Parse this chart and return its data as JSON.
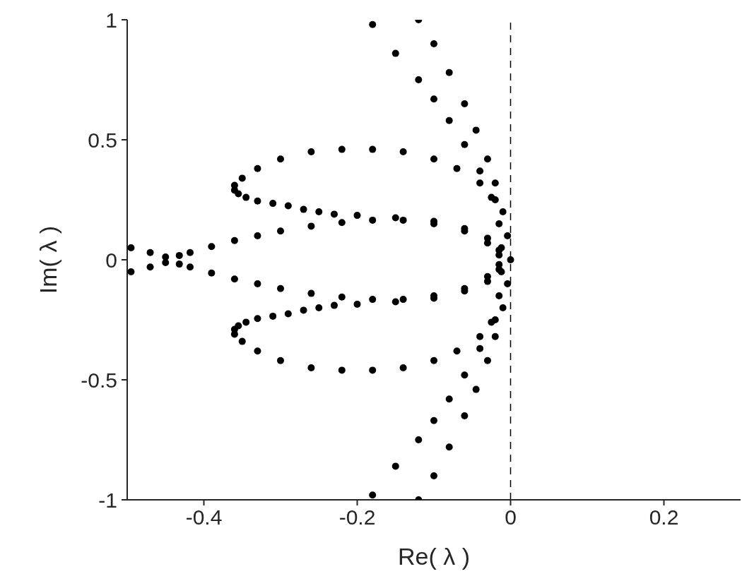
{
  "chart_data": {
    "type": "scatter",
    "xlabel": "Re( λ )",
    "ylabel": "Im( λ )",
    "xlim": [
      -0.5,
      0.3
    ],
    "ylim": [
      -1,
      1
    ],
    "xticks": [
      -0.4,
      -0.2,
      0,
      0.2
    ],
    "yticks": [
      -1,
      -0.5,
      0,
      0.5,
      1
    ],
    "grid": false,
    "legend": false,
    "marker": "circle",
    "ref_lines": [
      {
        "axis": "x",
        "value": 0,
        "line_style": "dashed",
        "color": "#000000"
      }
    ],
    "series": [
      {
        "color": "#000000",
        "x": [
          -0.12,
          -0.1,
          -0.08,
          -0.06,
          -0.045,
          -0.03,
          -0.02,
          -0.01,
          -0.004,
          0,
          -0.004,
          -0.01,
          -0.02,
          -0.03,
          -0.045,
          -0.06,
          -0.08,
          -0.1,
          -0.12,
          -0.18,
          -0.15,
          -0.12,
          -0.1,
          -0.08,
          -0.06,
          -0.04,
          -0.025,
          -0.015,
          -0.012,
          -0.012,
          -0.015,
          -0.025,
          -0.04,
          -0.06,
          -0.08,
          -0.1,
          -0.12,
          -0.15,
          -0.18,
          -0.02,
          -0.04,
          -0.07,
          -0.1,
          -0.14,
          -0.18,
          -0.22,
          -0.26,
          -0.3,
          -0.33,
          -0.35,
          -0.36,
          -0.36,
          -0.355,
          -0.345,
          -0.33,
          -0.31,
          -0.29,
          -0.27,
          -0.25,
          -0.23,
          -0.2,
          -0.15,
          -0.1,
          -0.06,
          -0.03,
          -0.015,
          -0.02,
          -0.04,
          -0.07,
          -0.1,
          -0.14,
          -0.18,
          -0.22,
          -0.26,
          -0.3,
          -0.33,
          -0.35,
          -0.36,
          -0.36,
          -0.355,
          -0.345,
          -0.33,
          -0.31,
          -0.29,
          -0.27,
          -0.25,
          -0.23,
          -0.2,
          -0.15,
          -0.1,
          -0.06,
          -0.03,
          -0.015,
          -0.495,
          -0.47,
          -0.45,
          -0.432,
          -0.418,
          -0.39,
          -0.36,
          -0.33,
          -0.3,
          -0.26,
          -0.22,
          -0.18,
          -0.14,
          -0.1,
          -0.06,
          -0.03,
          -0.015,
          -0.495,
          -0.47,
          -0.45,
          -0.432,
          -0.418,
          -0.39,
          -0.36,
          -0.33,
          -0.3,
          -0.26,
          -0.22,
          -0.18,
          -0.14,
          -0.1,
          -0.06,
          -0.03,
          -0.015
        ],
        "values": [
          1,
          0.9,
          0.78,
          0.65,
          0.54,
          0.42,
          0.32,
          0.2,
          0.1,
          0,
          -0.1,
          -0.2,
          -0.32,
          -0.42,
          -0.54,
          -0.65,
          -0.78,
          -0.9,
          -1,
          0.98,
          0.86,
          0.75,
          0.67,
          0.58,
          0.48,
          0.37,
          0.26,
          0.15,
          0.05,
          -0.05,
          -0.15,
          -0.26,
          -0.37,
          -0.48,
          -0.58,
          -0.67,
          -0.75,
          -0.86,
          -0.98,
          0.25,
          0.32,
          0.38,
          0.42,
          0.45,
          0.46,
          0.46,
          0.45,
          0.42,
          0.38,
          0.34,
          0.31,
          0.29,
          0.275,
          0.26,
          0.245,
          0.235,
          0.225,
          0.21,
          0.2,
          0.19,
          0.185,
          0.175,
          0.16,
          0.13,
          0.09,
          0.04,
          -0.25,
          -0.32,
          -0.38,
          -0.42,
          -0.45,
          -0.46,
          -0.46,
          -0.45,
          -0.42,
          -0.38,
          -0.34,
          -0.31,
          -0.29,
          -0.275,
          -0.26,
          -0.245,
          -0.235,
          -0.225,
          -0.21,
          -0.2,
          -0.19,
          -0.185,
          -0.175,
          -0.16,
          -0.13,
          -0.09,
          -0.04,
          0.05,
          0.03,
          0.012,
          0.018,
          0.03,
          0.055,
          0.08,
          0.1,
          0.12,
          0.14,
          0.155,
          0.165,
          0.165,
          0.15,
          0.12,
          0.07,
          0.02,
          -0.05,
          -0.03,
          -0.012,
          -0.018,
          -0.03,
          -0.055,
          -0.08,
          -0.1,
          -0.12,
          -0.14,
          -0.155,
          -0.165,
          -0.165,
          -0.15,
          -0.12,
          -0.07,
          -0.02
        ]
      }
    ]
  }
}
